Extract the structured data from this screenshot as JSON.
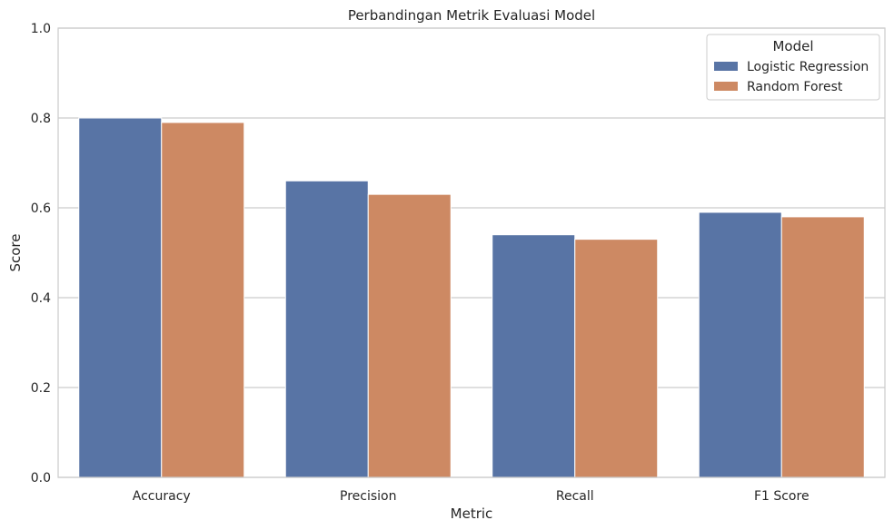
{
  "chart_data": {
    "type": "bar",
    "title": "Perbandingan Metrik Evaluasi Model",
    "xlabel": "Metric",
    "ylabel": "Score",
    "categories": [
      "Accuracy",
      "Precision",
      "Recall",
      "F1 Score"
    ],
    "series": [
      {
        "name": "Logistic Regression",
        "color": "#5874a5",
        "values": [
          0.8,
          0.66,
          0.54,
          0.59
        ]
      },
      {
        "name": "Random Forest",
        "color": "#cd8963",
        "values": [
          0.79,
          0.63,
          0.53,
          0.58
        ]
      }
    ],
    "ylim": [
      0,
      1.0
    ],
    "yticks": [
      "0.0",
      "0.2",
      "0.4",
      "0.6",
      "0.8",
      "1.0"
    ],
    "grid": "horizontal",
    "legend": {
      "title": "Model",
      "position": "top-right"
    }
  }
}
